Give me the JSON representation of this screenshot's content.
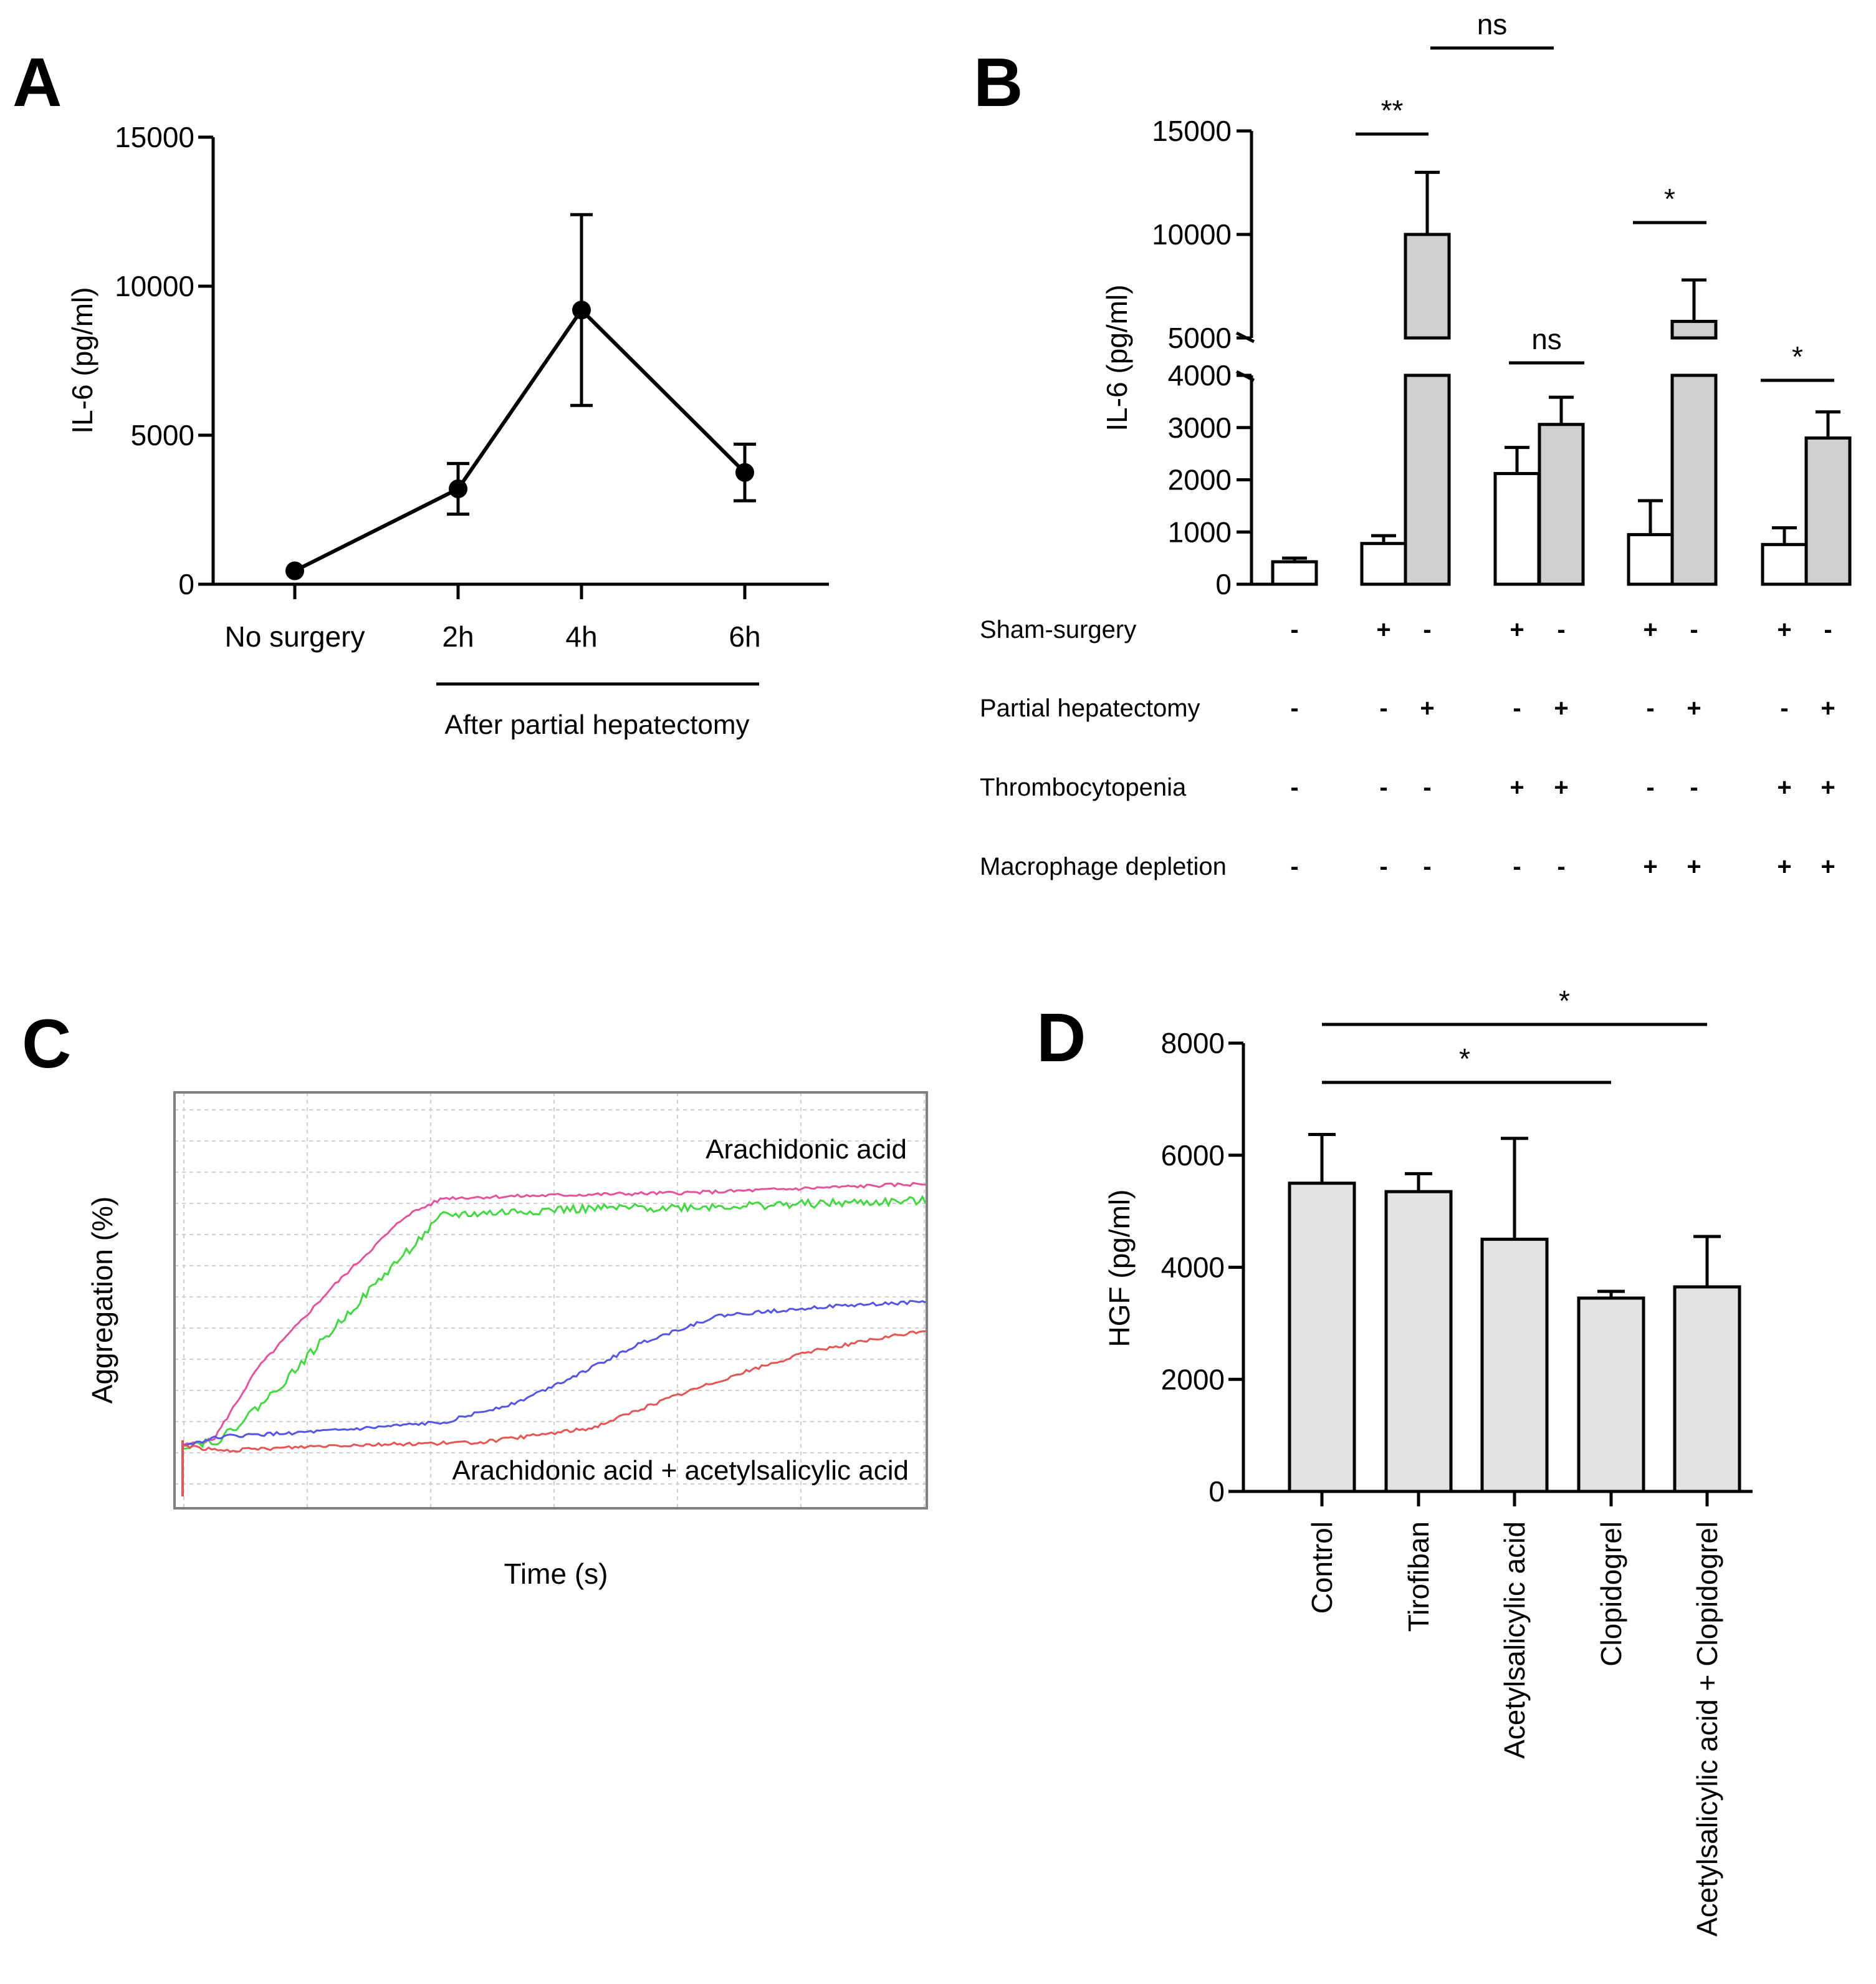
{
  "chart_data": [
    {
      "panel": "A",
      "type": "line",
      "ylabel": "IL-6 (pg/ml)",
      "ylim": [
        0,
        15000
      ],
      "yticks": [
        0,
        5000,
        10000,
        15000
      ],
      "categories": [
        "No surgery",
        "2h",
        "4h",
        "6h"
      ],
      "values": [
        450,
        3200,
        9200,
        3750
      ],
      "errors": [
        0,
        850,
        3200,
        950
      ],
      "group_label": "After partial hepatectomy"
    },
    {
      "panel": "B",
      "type": "bar",
      "ylabel": "IL-6 (pg/ml)",
      "axis_break": [
        4000,
        5000
      ],
      "yticks_lower": [
        0,
        1000,
        2000,
        3000,
        4000
      ],
      "yticks_upper": [
        5000,
        10000,
        15000
      ],
      "bars": [
        {
          "group": 1,
          "fill": "white",
          "value": 430,
          "error": 70
        },
        {
          "group": 2,
          "fill": "white",
          "value": 780,
          "error": 150
        },
        {
          "group": 2,
          "fill": "grey",
          "value": 10000,
          "error": 3000
        },
        {
          "group": 3,
          "fill": "white",
          "value": 2120,
          "error": 500
        },
        {
          "group": 3,
          "fill": "grey",
          "value": 3060,
          "error": 520
        },
        {
          "group": 4,
          "fill": "white",
          "value": 950,
          "error": 650
        },
        {
          "group": 4,
          "fill": "grey",
          "value": 5800,
          "error": 2000
        },
        {
          "group": 5,
          "fill": "white",
          "value": 760,
          "error": 320
        },
        {
          "group": 5,
          "fill": "grey",
          "value": 2800,
          "error": 500
        }
      ],
      "significance": [
        {
          "label": "**",
          "from": 1,
          "to": 2
        },
        {
          "label": "ns",
          "from": 2,
          "to": 4
        },
        {
          "label": "ns",
          "from": 3,
          "to": 4
        },
        {
          "label": "*",
          "from": 5,
          "to": 6
        },
        {
          "label": "*",
          "from": 7,
          "to": 8
        }
      ],
      "conditions": [
        {
          "label": "Sham-surgery",
          "values": [
            "-",
            "+",
            "-",
            "+",
            "-",
            "+",
            "-",
            "+",
            "-"
          ]
        },
        {
          "label": "Partial hepatectomy",
          "values": [
            "-",
            "-",
            "+",
            "-",
            "+",
            "-",
            "+",
            "-",
            "+"
          ]
        },
        {
          "label": "Thrombocytopenia",
          "values": [
            "-",
            "-",
            "-",
            "+",
            "+",
            "-",
            "-",
            "+",
            "+"
          ]
        },
        {
          "label": "Macrophage depletion",
          "values": [
            "-",
            "-",
            "-",
            "-",
            "-",
            "+",
            "+",
            "+",
            "+"
          ]
        }
      ]
    },
    {
      "panel": "C",
      "type": "line",
      "xlabel": "Time (s)",
      "ylabel": "Aggregation (%)",
      "grid": true,
      "annotations": [
        "Arachidonic acid",
        "Arachidonic acid + acetylsalicylic acid"
      ],
      "series": [
        {
          "color": "#e6529a",
          "group": "Arachidonic acid",
          "x": [
            0,
            0.04,
            0.1,
            0.2,
            0.3,
            0.35,
            0.5,
            0.7,
            1.0
          ],
          "y": [
            0,
            0.02,
            0.27,
            0.55,
            0.8,
            0.86,
            0.87,
            0.88,
            0.91
          ]
        },
        {
          "color": "#40d940",
          "group": "Arachidonic acid",
          "x": [
            0,
            0.05,
            0.12,
            0.2,
            0.28,
            0.35,
            0.5,
            0.7,
            1.0
          ],
          "y": [
            0,
            0.02,
            0.18,
            0.4,
            0.62,
            0.8,
            0.82,
            0.83,
            0.85
          ]
        },
        {
          "color": "#5454e6",
          "group": "Arachidonic acid + acetylsalicylic acid",
          "x": [
            0,
            0.05,
            0.2,
            0.35,
            0.45,
            0.55,
            0.62,
            0.72,
            0.85,
            1.0
          ],
          "y": [
            0,
            0.03,
            0.05,
            0.08,
            0.15,
            0.27,
            0.36,
            0.45,
            0.48,
            0.5
          ]
        },
        {
          "color": "#e65454",
          "group": "Arachidonic acid + acetylsalicylic acid",
          "x": [
            0,
            0.05,
            0.2,
            0.4,
            0.55,
            0.65,
            0.75,
            0.85,
            1.0
          ],
          "y": [
            0,
            -0.02,
            0.0,
            0.01,
            0.06,
            0.16,
            0.25,
            0.33,
            0.4
          ]
        }
      ]
    },
    {
      "panel": "D",
      "type": "bar",
      "ylabel": "HGF (pg/ml)",
      "ylim": [
        0,
        8000
      ],
      "yticks": [
        0,
        2000,
        4000,
        6000,
        8000
      ],
      "categories": [
        "Control",
        "Tirofiban",
        "Acetylsalicylic acid",
        "Clopidogrel",
        "Acetylsalicylic acid + Clopidogrel"
      ],
      "values": [
        5500,
        5350,
        4500,
        3450,
        3650
      ],
      "errors": [
        870,
        320,
        1800,
        120,
        900
      ],
      "significance": [
        {
          "label": "*",
          "from": 0,
          "to": 3
        },
        {
          "label": "*",
          "from": 0,
          "to": 4
        }
      ]
    }
  ]
}
